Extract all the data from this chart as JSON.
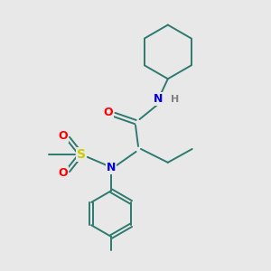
{
  "background_color": "#e8e8e8",
  "bond_color": "#2d7a6e",
  "atom_colors": {
    "N": "#0000ee",
    "O": "#ff0000",
    "S": "#cccc00",
    "H": "#808080",
    "C": "#2d7a6e"
  },
  "figsize": [
    3.0,
    3.0
  ],
  "dpi": 100,
  "xlim": [
    0,
    10
  ],
  "ylim": [
    0,
    10
  ],
  "bond_lw": 1.4,
  "font_size": 9
}
